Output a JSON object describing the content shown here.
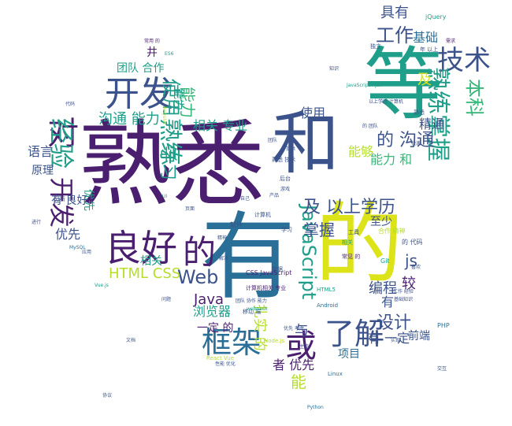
{
  "palette": {
    "purple": "#4b1f6f",
    "blue": "#2a6f97",
    "teal": "#1f9e89",
    "green": "#35b779",
    "lime": "#b5de2b",
    "yellow": "#dce319",
    "indigo": "#3b528b"
  },
  "words": [
    {
      "text": "熟悉",
      "color": "purple"
    },
    {
      "text": "有",
      "color": "blue"
    },
    {
      "text": "的",
      "color": "yellow"
    },
    {
      "text": "和",
      "color": "indigo"
    },
    {
      "text": "等",
      "color": "teal"
    },
    {
      "text": "良好",
      "color": "purple"
    },
    {
      "text": "开发",
      "color": "indigo"
    },
    {
      "text": "框架",
      "color": "blue"
    },
    {
      "text": "或",
      "color": "purple"
    },
    {
      "text": "了解",
      "color": "indigo"
    },
    {
      "text": "的",
      "color": "purple"
    },
    {
      "text": "技术",
      "color": "indigo"
    },
    {
      "text": "对",
      "color": "purple"
    },
    {
      "text": "经验",
      "color": "teal"
    },
    {
      "text": "开发",
      "color": "purple"
    },
    {
      "text": "Web",
      "color": "indigo"
    },
    {
      "text": "JavaScript",
      "color": "teal"
    },
    {
      "text": "熟练掌握",
      "color": "teal"
    },
    {
      "text": "工作",
      "color": "indigo"
    },
    {
      "text": "熟练",
      "color": "teal"
    },
    {
      "text": "使用",
      "color": "teal"
    },
    {
      "text": "及 以上学历",
      "color": "indigo"
    },
    {
      "text": "的 沟通",
      "color": "indigo"
    },
    {
      "text": "HTML CSS",
      "color": "lime"
    },
    {
      "text": "js",
      "color": "indigo"
    },
    {
      "text": "本科",
      "color": "green"
    },
    {
      "text": "沟通 能力",
      "color": "teal"
    },
    {
      "text": "能力",
      "color": "green"
    },
    {
      "text": "掌握",
      "color": "indigo"
    },
    {
      "text": "具有",
      "color": "indigo"
    },
    {
      "text": "基础",
      "color": "blue"
    },
    {
      "text": "学习",
      "color": "teal"
    },
    {
      "text": "相关 专业",
      "color": "teal"
    },
    {
      "text": "设计",
      "color": "indigo"
    },
    {
      "text": "与",
      "color": "indigo"
    },
    {
      "text": "Java",
      "color": "purple"
    },
    {
      "text": "浏览器",
      "color": "teal"
    },
    {
      "text": "编程",
      "color": "indigo"
    },
    {
      "text": "精通",
      "color": "indigo"
    },
    {
      "text": "使用",
      "color": "indigo"
    },
    {
      "text": "能力 和",
      "color": "green"
    },
    {
      "text": "能",
      "color": "lime"
    },
    {
      "text": "有 一定",
      "color": "indigo"
    },
    {
      "text": "优先",
      "color": "indigo"
    },
    {
      "text": "者 优先",
      "color": "purple"
    },
    {
      "text": "扎实 的",
      "color": "lime"
    },
    {
      "text": "项目",
      "color": "blue"
    },
    {
      "text": "前端",
      "color": "indigo"
    },
    {
      "text": "至少",
      "color": "indigo"
    },
    {
      "text": "语言",
      "color": "indigo"
    },
    {
      "text": "原理",
      "color": "indigo"
    },
    {
      "text": "团队 合作",
      "color": "teal"
    },
    {
      "text": "井",
      "color": "purple"
    },
    {
      "text": "能力",
      "color": "teal"
    },
    {
      "text": "有 良好",
      "color": "indigo"
    },
    {
      "text": "优先",
      "color": "teal"
    },
    {
      "text": "相关",
      "color": "teal"
    },
    {
      "text": "一定 的",
      "color": "purple"
    },
    {
      "text": "较",
      "color": "purple"
    },
    {
      "text": "有",
      "color": "indigo"
    },
    {
      "text": "及",
      "color": "yellow"
    },
    {
      "text": "能够",
      "color": "lime"
    },
    {
      "text": "jQuery",
      "color": "teal"
    },
    {
      "text": "Git",
      "color": "teal"
    },
    {
      "text": "PHP",
      "color": "blue"
    },
    {
      "text": "Python",
      "color": "blue"
    },
    {
      "text": "MySQL",
      "color": "blue"
    },
    {
      "text": "HTML5",
      "color": "teal"
    },
    {
      "text": "CSS JavaScript",
      "color": "purple"
    },
    {
      "text": "计算机相关 专业",
      "color": "purple"
    },
    {
      "text": "计算机",
      "color": "indigo"
    },
    {
      "text": "Node.js",
      "color": "lime"
    },
    {
      "text": "React Vue",
      "color": "lime"
    },
    {
      "text": "Vue.js",
      "color": "teal"
    },
    {
      "text": "Android",
      "color": "blue"
    },
    {
      "text": "Linux",
      "color": "blue"
    },
    {
      "text": "团队 协作 能力",
      "color": "indigo"
    },
    {
      "text": "移动 端",
      "color": "indigo"
    },
    {
      "text": "性能 优化",
      "color": "indigo"
    },
    {
      "text": "软件",
      "color": "indigo"
    },
    {
      "text": "学习",
      "color": "indigo"
    },
    {
      "text": "工具",
      "color": "indigo"
    },
    {
      "text": "合作 精神",
      "color": "lime"
    },
    {
      "text": "相关",
      "color": "teal"
    },
    {
      "text": "常见 的",
      "color": "purple"
    },
    {
      "text": "的 代码",
      "color": "indigo"
    },
    {
      "text": "优先 考虑",
      "color": "indigo"
    },
    {
      "text": "工作 经验",
      "color": "indigo"
    },
    {
      "text": "基础知识",
      "color": "indigo"
    },
    {
      "text": "年 以上",
      "color": "indigo"
    },
    {
      "text": "常用 的",
      "color": "purple"
    },
    {
      "text": "ES6",
      "color": "teal"
    },
    {
      "text": "Angular",
      "color": "lime"
    },
    {
      "text": "webpack",
      "color": "teal"
    },
    {
      "text": "熟悉 技术",
      "color": "indigo"
    },
    {
      "text": "团队",
      "color": "indigo"
    },
    {
      "text": "代码",
      "color": "indigo"
    },
    {
      "text": "需求",
      "color": "purple"
    },
    {
      "text": "分析",
      "color": "indigo"
    },
    {
      "text": "UI",
      "color": "teal"
    },
    {
      "text": "数据",
      "color": "indigo"
    },
    {
      "text": "独立",
      "color": "indigo"
    },
    {
      "text": "知识",
      "color": "indigo"
    },
    {
      "text": "JavaScript Ajax",
      "color": "teal"
    },
    {
      "text": "以上学历 计算机",
      "color": "indigo"
    },
    {
      "text": "的 团队",
      "color": "indigo"
    },
    {
      "text": "熟悉",
      "color": "indigo"
    },
    {
      "text": "交互",
      "color": "indigo"
    },
    {
      "text": "主流",
      "color": "indigo"
    },
    {
      "text": "实现",
      "color": "indigo"
    },
    {
      "text": "后台",
      "color": "indigo"
    },
    {
      "text": "自己",
      "color": "indigo"
    },
    {
      "text": "产品",
      "color": "indigo"
    },
    {
      "text": "游戏",
      "color": "indigo"
    },
    {
      "text": "精神",
      "color": "indigo"
    },
    {
      "text": "解决",
      "color": "indigo"
    },
    {
      "text": "进行",
      "color": "indigo"
    },
    {
      "text": "问题",
      "color": "indigo"
    },
    {
      "text": "应用",
      "color": "indigo"
    },
    {
      "text": "喜欢",
      "color": "indigo"
    },
    {
      "text": "页面",
      "color": "indigo"
    },
    {
      "text": "快速",
      "color": "indigo"
    },
    {
      "text": "提供",
      "color": "indigo"
    },
    {
      "text": "文档",
      "color": "indigo"
    },
    {
      "text": "协议",
      "color": "indigo"
    }
  ]
}
